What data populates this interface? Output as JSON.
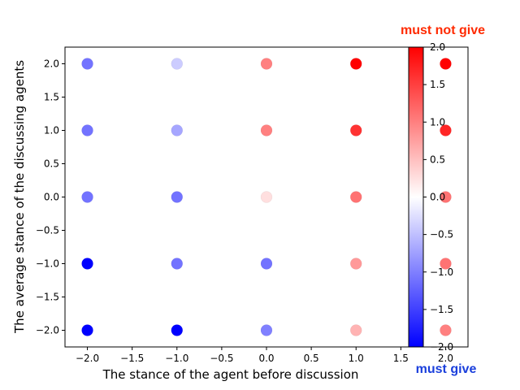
{
  "chart_data": {
    "type": "scatter",
    "title": "",
    "xlabel": "The stance of the agent before discussion",
    "ylabel": "The average stance of the discussing agents",
    "xlim": [
      -2.25,
      2.25
    ],
    "ylim": [
      -2.25,
      2.25
    ],
    "xticks": [
      "−2.0",
      "−1.5",
      "−1.0",
      "−0.5",
      "0.0",
      "0.5",
      "1.0",
      "1.5",
      "2.0"
    ],
    "yticks": [
      "−2.0",
      "−1.5",
      "−1.0",
      "−0.5",
      "0.0",
      "0.5",
      "1.0",
      "1.5",
      "2.0"
    ],
    "grid": false,
    "colormap": "bwr",
    "color_range": [
      -2.0,
      2.0
    ],
    "colorbar_ticks": [
      "2.0",
      "1.5",
      "1.0",
      "0.5",
      "0.0",
      "−0.5",
      "−1.0",
      "−1.5",
      "−2.0"
    ],
    "colorbar_top_label": "must not give",
    "colorbar_bottom_label": "must give",
    "colorbar_top_label_color": "#ff2a00",
    "colorbar_bottom_label_color": "#1a3fdc",
    "points": [
      {
        "x": -2,
        "y": 2,
        "c": -1.1
      },
      {
        "x": -1,
        "y": 2,
        "c": -0.4
      },
      {
        "x": 0,
        "y": 2,
        "c": 1.0
      },
      {
        "x": 1,
        "y": 2,
        "c": 2.0
      },
      {
        "x": 2,
        "y": 2,
        "c": 2.0
      },
      {
        "x": -2,
        "y": 1,
        "c": -1.1
      },
      {
        "x": -1,
        "y": 1,
        "c": -0.7
      },
      {
        "x": 0,
        "y": 1,
        "c": 1.0
      },
      {
        "x": 1,
        "y": 1,
        "c": 1.6
      },
      {
        "x": 2,
        "y": 1,
        "c": 1.7
      },
      {
        "x": -2,
        "y": 0,
        "c": -1.1
      },
      {
        "x": -1,
        "y": 0,
        "c": -1.1
      },
      {
        "x": 0,
        "y": 0,
        "c": 0.25
      },
      {
        "x": 1,
        "y": 0,
        "c": 1.1
      },
      {
        "x": 2,
        "y": 0,
        "c": 1.1
      },
      {
        "x": -2,
        "y": -1,
        "c": -2.0
      },
      {
        "x": -1,
        "y": -1,
        "c": -1.1
      },
      {
        "x": 0,
        "y": -1,
        "c": -1.1
      },
      {
        "x": 1,
        "y": -1,
        "c": 0.8
      },
      {
        "x": 2,
        "y": -1,
        "c": 1.1
      },
      {
        "x": -2,
        "y": -2,
        "c": -2.0
      },
      {
        "x": -1,
        "y": -2,
        "c": -2.0
      },
      {
        "x": 0,
        "y": -2,
        "c": -1.0
      },
      {
        "x": 1,
        "y": -2,
        "c": 0.6
      },
      {
        "x": 2,
        "y": -2,
        "c": 1.0
      }
    ]
  }
}
